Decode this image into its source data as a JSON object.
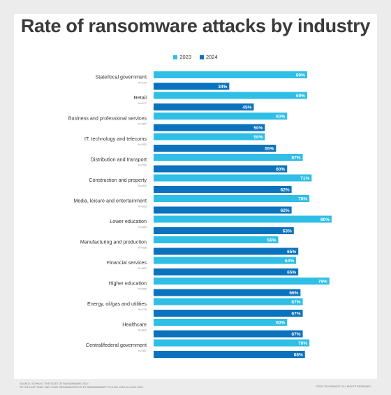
{
  "chart_data": {
    "type": "bar",
    "orientation": "horizontal",
    "title": "Rate of ransomware attacks by industry",
    "xlim": [
      0,
      80
    ],
    "grid": false,
    "legend_position": "top-center",
    "colors": {
      "2023": "#2fbfe6",
      "2024": "#0b73bd"
    },
    "categories": [
      "State/local government",
      "Retail",
      "Business and professional services",
      "IT, technology and telecoms",
      "Distribution and transport",
      "Construction and property",
      "Media, leisure and entertainment",
      "Lower education",
      "Manufacturing and production",
      "Financial services",
      "Higher education",
      "Energy, oil/gas and utilities",
      "Healthcare",
      "Central/federal government"
    ],
    "sample_sizes": [
      "N=270",
      "N=577",
      "N=357",
      "N=352",
      "N=250",
      "N=200",
      "N=353",
      "N=369",
      "N=535",
      "N=502",
      "N=349",
      "N=275",
      "N=402",
      "N=357"
    ],
    "series": [
      {
        "name": "2023",
        "values": [
          69,
          69,
          60,
          50,
          67,
          71,
          70,
          80,
          56,
          64,
          79,
          67,
          60,
          70
        ]
      },
      {
        "name": "2024",
        "values": [
          34,
          45,
          50,
          55,
          60,
          62,
          62,
          63,
          65,
          65,
          66,
          67,
          67,
          68
        ]
      }
    ]
  },
  "footer": {
    "source_line1": "SOURCE: SOPHOS, \"THE STATE OF RANSOMWARE 2024.\"",
    "source_line2": "\"IN THE LAST YEAR, WAS YOUR ORGANIZATION HIT BY RANSOMWARE?\" N=5,000, 2024; N=3,000, 2023",
    "copyright": "©2024 TECHTARGET. ALL RIGHTS RESERVED."
  }
}
